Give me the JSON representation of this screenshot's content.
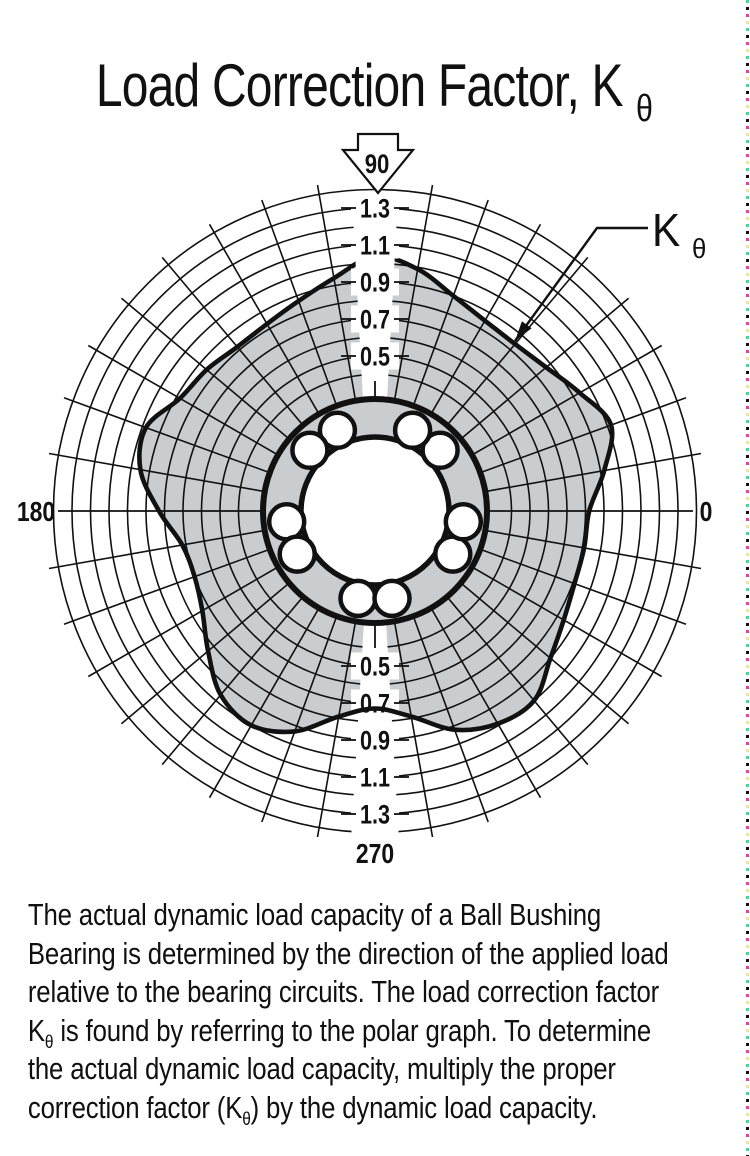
{
  "title": {
    "text": "Load Correction Factor, K",
    "subscript": "θ"
  },
  "callout": {
    "label": "K",
    "subscript": "θ"
  },
  "colors": {
    "ink": "#111111",
    "region_fill": "#cacdd0",
    "background": "#ffffff",
    "registration_dash_colors": [
      "#35e392",
      "#111111",
      "#ee3d9c",
      "#ece98e"
    ]
  },
  "chart_data": {
    "type": "polar-line",
    "title": "Load Correction Factor, Kθ",
    "angle_unit": "degrees",
    "angle_labels": {
      "right": "0",
      "top": "90",
      "left": "180",
      "bottom": "270"
    },
    "radial_axis": {
      "min": 0.4,
      "max": 1.4,
      "ring_step": 0.1,
      "labeled_rings": [
        0.5,
        0.7,
        0.9,
        1.1,
        1.3
      ],
      "labels_top": [
        {
          "v": 1.3,
          "label": "1.3"
        },
        {
          "v": 1.1,
          "label": "1.1"
        },
        {
          "v": 0.9,
          "label": "0.9"
        },
        {
          "v": 0.7,
          "label": "0.7"
        },
        {
          "v": 0.5,
          "label": "0.5"
        }
      ],
      "labels_bottom": [
        {
          "v": 0.5,
          "label": "0.5"
        },
        {
          "v": 0.7,
          "label": "0.7"
        },
        {
          "v": 0.9,
          "label": "0.9"
        },
        {
          "v": 1.1,
          "label": "1.1"
        },
        {
          "v": 1.3,
          "label": "1.3"
        }
      ]
    },
    "grid": {
      "spoke_step_deg": 10,
      "rings_on": true
    },
    "series": [
      {
        "name": "K_theta",
        "points": [
          [
            0,
            0.82
          ],
          [
            10,
            0.92
          ],
          [
            20,
            1.02
          ],
          [
            30,
            0.94
          ],
          [
            40,
            0.87
          ],
          [
            50,
            0.84
          ],
          [
            60,
            0.85
          ],
          [
            70,
            0.9
          ],
          [
            80,
            0.99
          ],
          [
            90,
            1.04
          ],
          [
            100,
            0.94
          ],
          [
            110,
            0.87
          ],
          [
            120,
            0.83
          ],
          [
            130,
            0.82
          ],
          [
            140,
            0.85
          ],
          [
            150,
            0.88
          ],
          [
            160,
            0.98
          ],
          [
            170,
            0.95
          ],
          [
            180,
            0.83
          ],
          [
            190,
            0.72
          ],
          [
            200,
            0.7
          ],
          [
            210,
            0.74
          ],
          [
            220,
            0.84
          ],
          [
            230,
            0.96
          ],
          [
            240,
            1.0
          ],
          [
            250,
            0.93
          ],
          [
            260,
            0.79
          ],
          [
            270,
            0.73
          ],
          [
            280,
            0.79
          ],
          [
            290,
            0.92
          ],
          [
            300,
            0.99
          ],
          [
            310,
            1.0
          ],
          [
            320,
            0.9
          ],
          [
            330,
            0.84
          ],
          [
            340,
            0.81
          ],
          [
            350,
            0.81
          ]
        ]
      }
    ],
    "bearing": {
      "ball_count": 10,
      "ball_pair_center_angles_deg": [
        54,
        126,
        198,
        270,
        342
      ],
      "ball_angles_deg": [
        43,
        65,
        115,
        137,
        187,
        209,
        259,
        281,
        331,
        353
      ]
    }
  },
  "paragraph": {
    "line1": "The actual dynamic load capacity of a Ball Bushing",
    "line2": "Bearing is determined by the direction of the applied load",
    "line3": "relative to the bearing circuits. The load correction factor",
    "line4_pre": "K",
    "line4_sub": "θ",
    "line4_rest": " is found by referring to the polar graph. To determine",
    "line5": "the actual dynamic load capacity, multiply the proper",
    "line6_pre": "correction factor (K",
    "line6_sub": "θ",
    "line6_rest": ") by the dynamic load capacity."
  }
}
